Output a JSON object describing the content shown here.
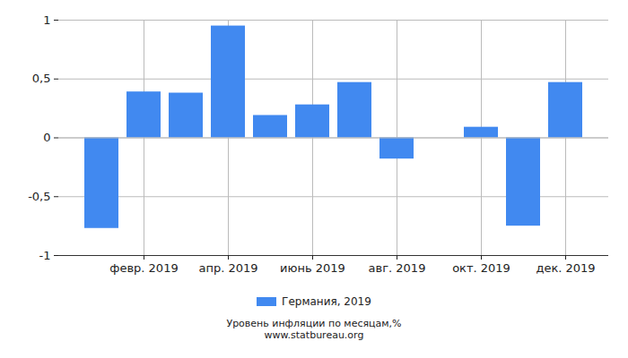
{
  "chart_data": {
    "type": "bar",
    "title": "Уровень инфляции по месяцам,%",
    "source": "www.statbureau.org",
    "categories": [
      null,
      "февр. 2019",
      null,
      "апр. 2019",
      null,
      "июнь 2019",
      null,
      "авг. 2019",
      null,
      "окт. 2019",
      null,
      "дек. 2019"
    ],
    "series": [
      {
        "name": "Германия, 2019",
        "color": "#4189f0",
        "values": [
          -0.77,
          0.39,
          0.38,
          0.95,
          0.19,
          0.28,
          0.47,
          -0.18,
          0,
          0.09,
          -0.75,
          0.47
        ]
      }
    ],
    "ylim": [
      -1,
      1
    ],
    "yticks": [
      {
        "value": -1,
        "label": "-1"
      },
      {
        "value": -0.5,
        "label": "-0,5"
      },
      0,
      {
        "value": 0.5,
        "label": "0,5"
      },
      1
    ],
    "grid": true,
    "legend": "bottom"
  }
}
